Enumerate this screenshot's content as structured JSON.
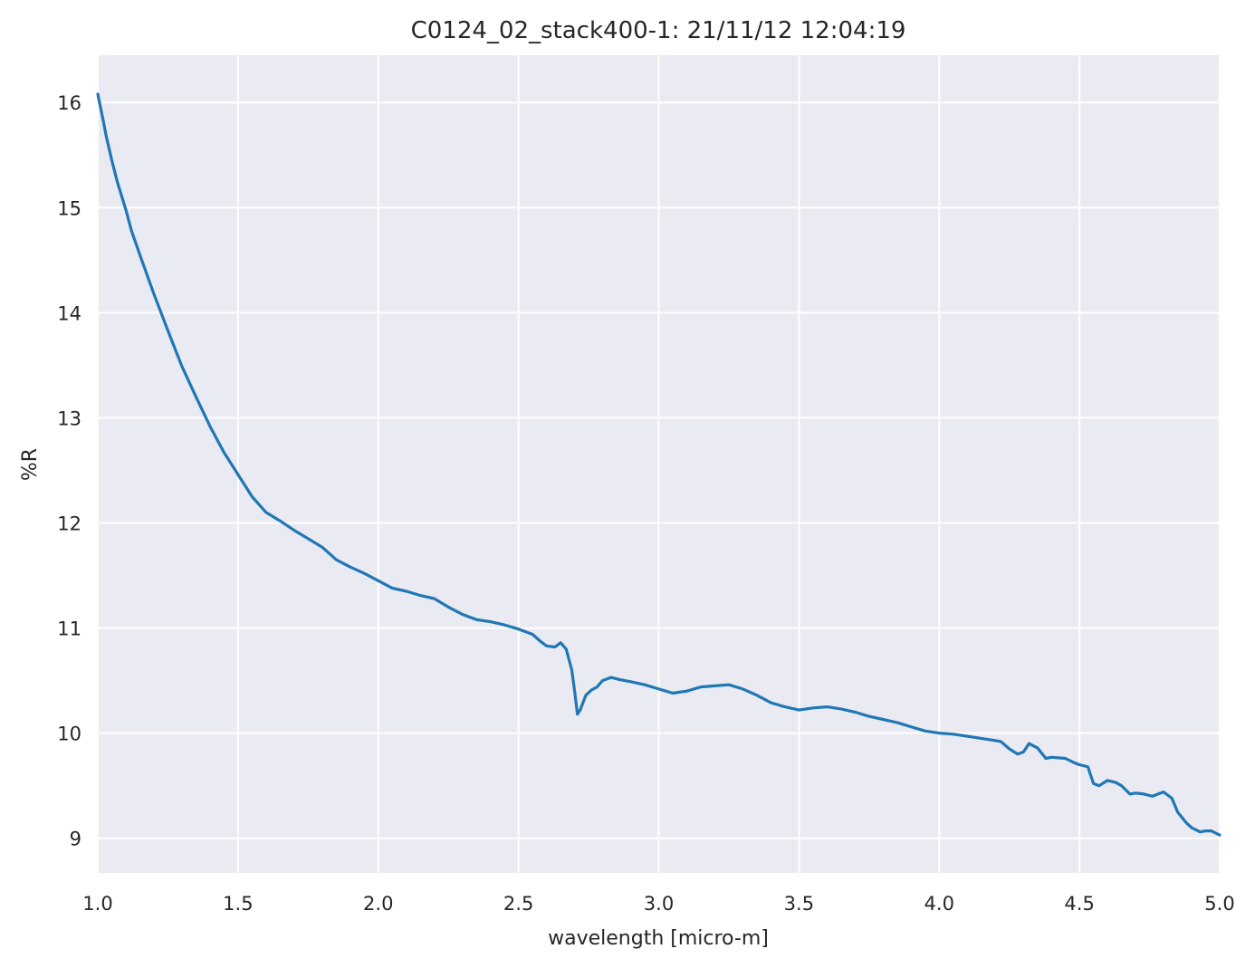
{
  "chart_data": {
    "type": "line",
    "title": "C0124_02_stack400-1:  21/11/12 12:04:19",
    "xlabel": "wavelength [micro-m]",
    "ylabel": "%R",
    "xlim": [
      1.0,
      5.0
    ],
    "ylim": [
      8.67,
      16.45
    ],
    "grid": true,
    "x_ticks": [
      1.0,
      1.5,
      2.0,
      2.5,
      3.0,
      3.5,
      4.0,
      4.5,
      5.0
    ],
    "x_tick_labels": [
      "1.0",
      "1.5",
      "2.0",
      "2.5",
      "3.0",
      "3.5",
      "4.0",
      "4.5",
      "5.0"
    ],
    "y_ticks": [
      9,
      10,
      11,
      12,
      13,
      14,
      15,
      16
    ],
    "y_tick_labels": [
      "9",
      "10",
      "11",
      "12",
      "13",
      "14",
      "15",
      "16"
    ],
    "colors": {
      "background": "#eaeaf2",
      "grid": "#ffffff",
      "line": "#1f77b4",
      "text": "#262626"
    },
    "series": [
      {
        "x": [
          1.0,
          1.01,
          1.02,
          1.03,
          1.05,
          1.07,
          1.1,
          1.12,
          1.15,
          1.2,
          1.25,
          1.3,
          1.35,
          1.4,
          1.45,
          1.5,
          1.55,
          1.6,
          1.65,
          1.7,
          1.75,
          1.8,
          1.85,
          1.9,
          1.95,
          2.0,
          2.05,
          2.1,
          2.15,
          2.2,
          2.25,
          2.3,
          2.35,
          2.4,
          2.45,
          2.5,
          2.55,
          2.58,
          2.6,
          2.63,
          2.65,
          2.67,
          2.69,
          2.7,
          2.71,
          2.72,
          2.74,
          2.76,
          2.78,
          2.8,
          2.83,
          2.86,
          2.9,
          2.95,
          3.0,
          3.05,
          3.1,
          3.15,
          3.2,
          3.25,
          3.3,
          3.35,
          3.4,
          3.45,
          3.5,
          3.55,
          3.6,
          3.65,
          3.7,
          3.75,
          3.8,
          3.85,
          3.9,
          3.95,
          4.0,
          4.05,
          4.1,
          4.15,
          4.2,
          4.22,
          4.25,
          4.28,
          4.3,
          4.32,
          4.35,
          4.38,
          4.4,
          4.45,
          4.48,
          4.5,
          4.53,
          4.55,
          4.57,
          4.6,
          4.63,
          4.65,
          4.68,
          4.7,
          4.73,
          4.76,
          4.78,
          4.8,
          4.83,
          4.85,
          4.88,
          4.9,
          4.93,
          4.95,
          4.97,
          5.0
        ],
        "y": [
          16.08,
          15.95,
          15.82,
          15.68,
          15.45,
          15.24,
          14.98,
          14.78,
          14.55,
          14.18,
          13.83,
          13.49,
          13.2,
          12.92,
          12.67,
          12.46,
          12.25,
          12.1,
          12.02,
          11.93,
          11.85,
          11.77,
          11.65,
          11.58,
          11.52,
          11.45,
          11.38,
          11.35,
          11.31,
          11.28,
          11.2,
          11.13,
          11.08,
          11.06,
          11.03,
          10.99,
          10.94,
          10.87,
          10.83,
          10.82,
          10.86,
          10.8,
          10.6,
          10.4,
          10.18,
          10.22,
          10.36,
          10.41,
          10.44,
          10.5,
          10.53,
          10.51,
          10.49,
          10.46,
          10.42,
          10.38,
          10.4,
          10.44,
          10.45,
          10.46,
          10.42,
          10.36,
          10.29,
          10.25,
          10.22,
          10.24,
          10.25,
          10.23,
          10.2,
          10.16,
          10.13,
          10.1,
          10.06,
          10.02,
          10.0,
          9.99,
          9.97,
          9.95,
          9.93,
          9.92,
          9.85,
          9.8,
          9.82,
          9.9,
          9.86,
          9.76,
          9.77,
          9.76,
          9.72,
          9.7,
          9.68,
          9.52,
          9.5,
          9.55,
          9.53,
          9.5,
          9.42,
          9.43,
          9.42,
          9.4,
          9.42,
          9.44,
          9.38,
          9.25,
          9.15,
          9.1,
          9.06,
          9.07,
          9.07,
          9.03
        ]
      }
    ]
  }
}
